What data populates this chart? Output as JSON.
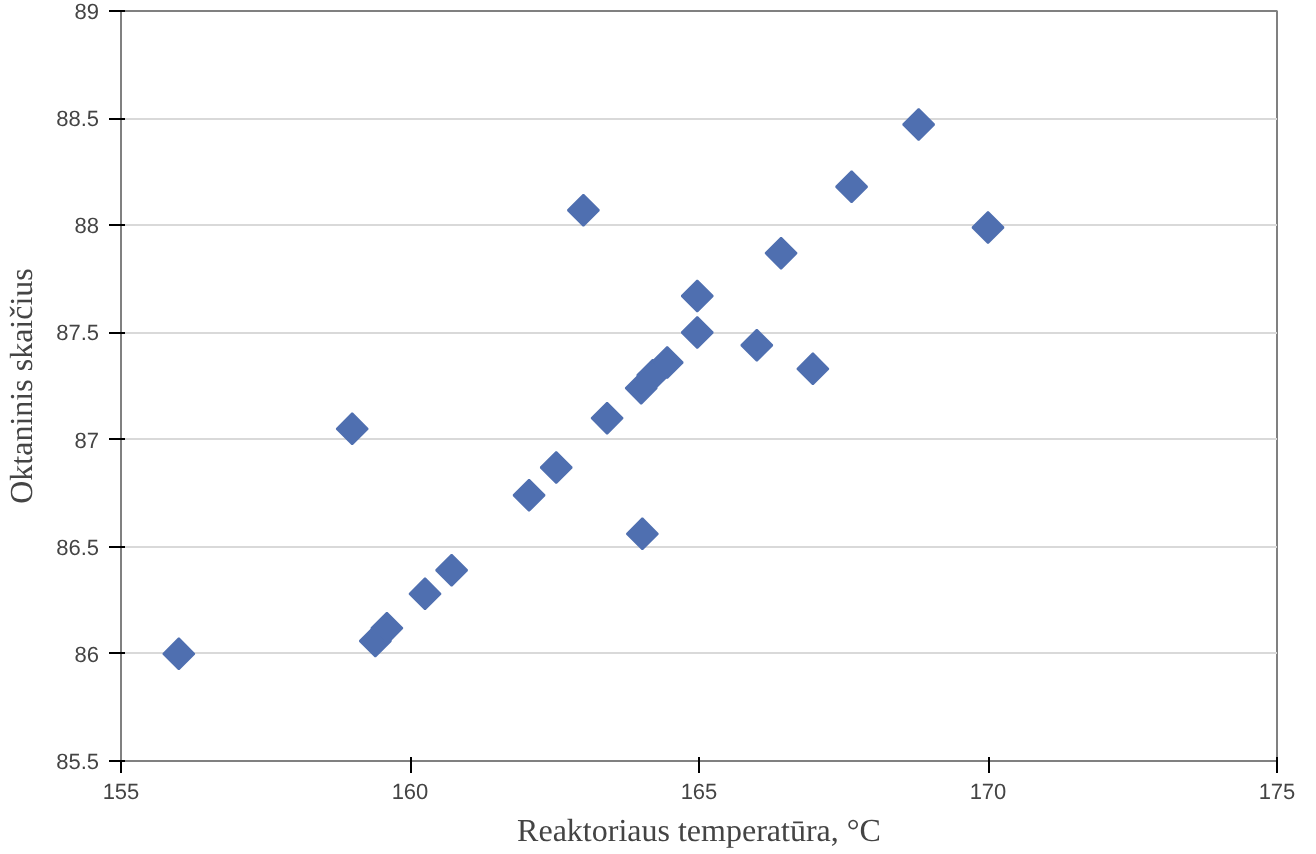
{
  "chart_data": {
    "type": "scatter",
    "xlabel": "Reaktoriaus temperatūra, °C",
    "ylabel": "Oktaninis skaičius",
    "series": [
      {
        "color": "#4f6fb0",
        "x": [
          156.0,
          159.0,
          159.4,
          159.6,
          160.26,
          160.72,
          162.06,
          162.53,
          163.0,
          163.41,
          164.0,
          164.02,
          164.2,
          164.45,
          164.97,
          164.97,
          166.0,
          166.42,
          166.97,
          167.64,
          168.8,
          170.0
        ],
        "values": [
          86.0,
          87.05,
          86.06,
          86.12,
          86.28,
          86.39,
          86.74,
          86.87,
          88.07,
          87.1,
          87.24,
          86.56,
          87.3,
          87.36,
          87.5,
          87.67,
          87.44,
          87.87,
          87.33,
          88.18,
          88.47,
          87.99
        ]
      }
    ],
    "marker": "diamond",
    "xlim": [
      155,
      175
    ],
    "ylim": [
      85.5,
      89
    ],
    "xticks": [
      155,
      160,
      165,
      170,
      175
    ],
    "yticks": [
      85.5,
      86,
      86.5,
      87,
      87.5,
      88,
      88.5,
      89
    ],
    "grid": "y"
  }
}
